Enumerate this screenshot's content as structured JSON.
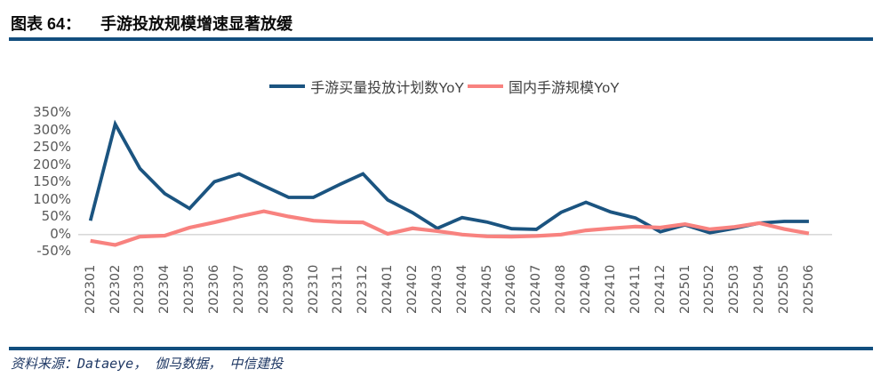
{
  "header": {
    "prefix": "图表 64：",
    "title": "手游投放规模增速显著放缓"
  },
  "legend": [
    {
      "label": "手游买量投放计划数YoY",
      "color": "#1b5480"
    },
    {
      "label": "国内手游规模YoY",
      "color": "#f8827f"
    }
  ],
  "footer": {
    "text": "资料来源：Dataeye， 伽马数据， 中信建投"
  },
  "colors": {
    "header_rule": "#124e7e",
    "zero_line": "#d9d9d9",
    "tick_text": "#595959"
  },
  "chart_data": {
    "type": "line",
    "title": "手游投放规模增速显著放缓",
    "xlabel": "",
    "ylabel": "",
    "grid": false,
    "legend_position": "top",
    "ylim": [
      -50,
      350
    ],
    "ytick_step": 50,
    "ytick_labels": [
      "350%",
      "300%",
      "250%",
      "200%",
      "150%",
      "100%",
      "50%",
      "0%",
      "-50%"
    ],
    "zero_line_color": "#d9d9d9",
    "categories": [
      "202301",
      "202302",
      "202303",
      "202304",
      "202305",
      "202306",
      "202307",
      "202308",
      "202309",
      "202310",
      "202311",
      "202312",
      "202401",
      "202402",
      "202403",
      "202404",
      "202405",
      "202406",
      "202407",
      "202408",
      "202409",
      "202410",
      "202411",
      "202412",
      "202501",
      "202502",
      "202503",
      "202504",
      "202505",
      "202506"
    ],
    "series": [
      {
        "name": "手游买量投放计划数YoY",
        "color": "#1b5480",
        "values": [
          40,
          318,
          190,
          118,
          75,
          152,
          175,
          140,
          107,
          107,
          142,
          175,
          100,
          63,
          18,
          49,
          36,
          17,
          15,
          64,
          93,
          65,
          48,
          8,
          28,
          5,
          18,
          33,
          38,
          38
        ]
      },
      {
        "name": "国内手游规模YoY",
        "color": "#f8827f",
        "values": [
          -18,
          -30,
          -6,
          -3,
          20,
          35,
          52,
          67,
          52,
          40,
          36,
          35,
          2,
          18,
          10,
          0,
          -5,
          -6,
          -4,
          0,
          12,
          18,
          23,
          20,
          30,
          15,
          22,
          33,
          16,
          3
        ]
      }
    ]
  }
}
